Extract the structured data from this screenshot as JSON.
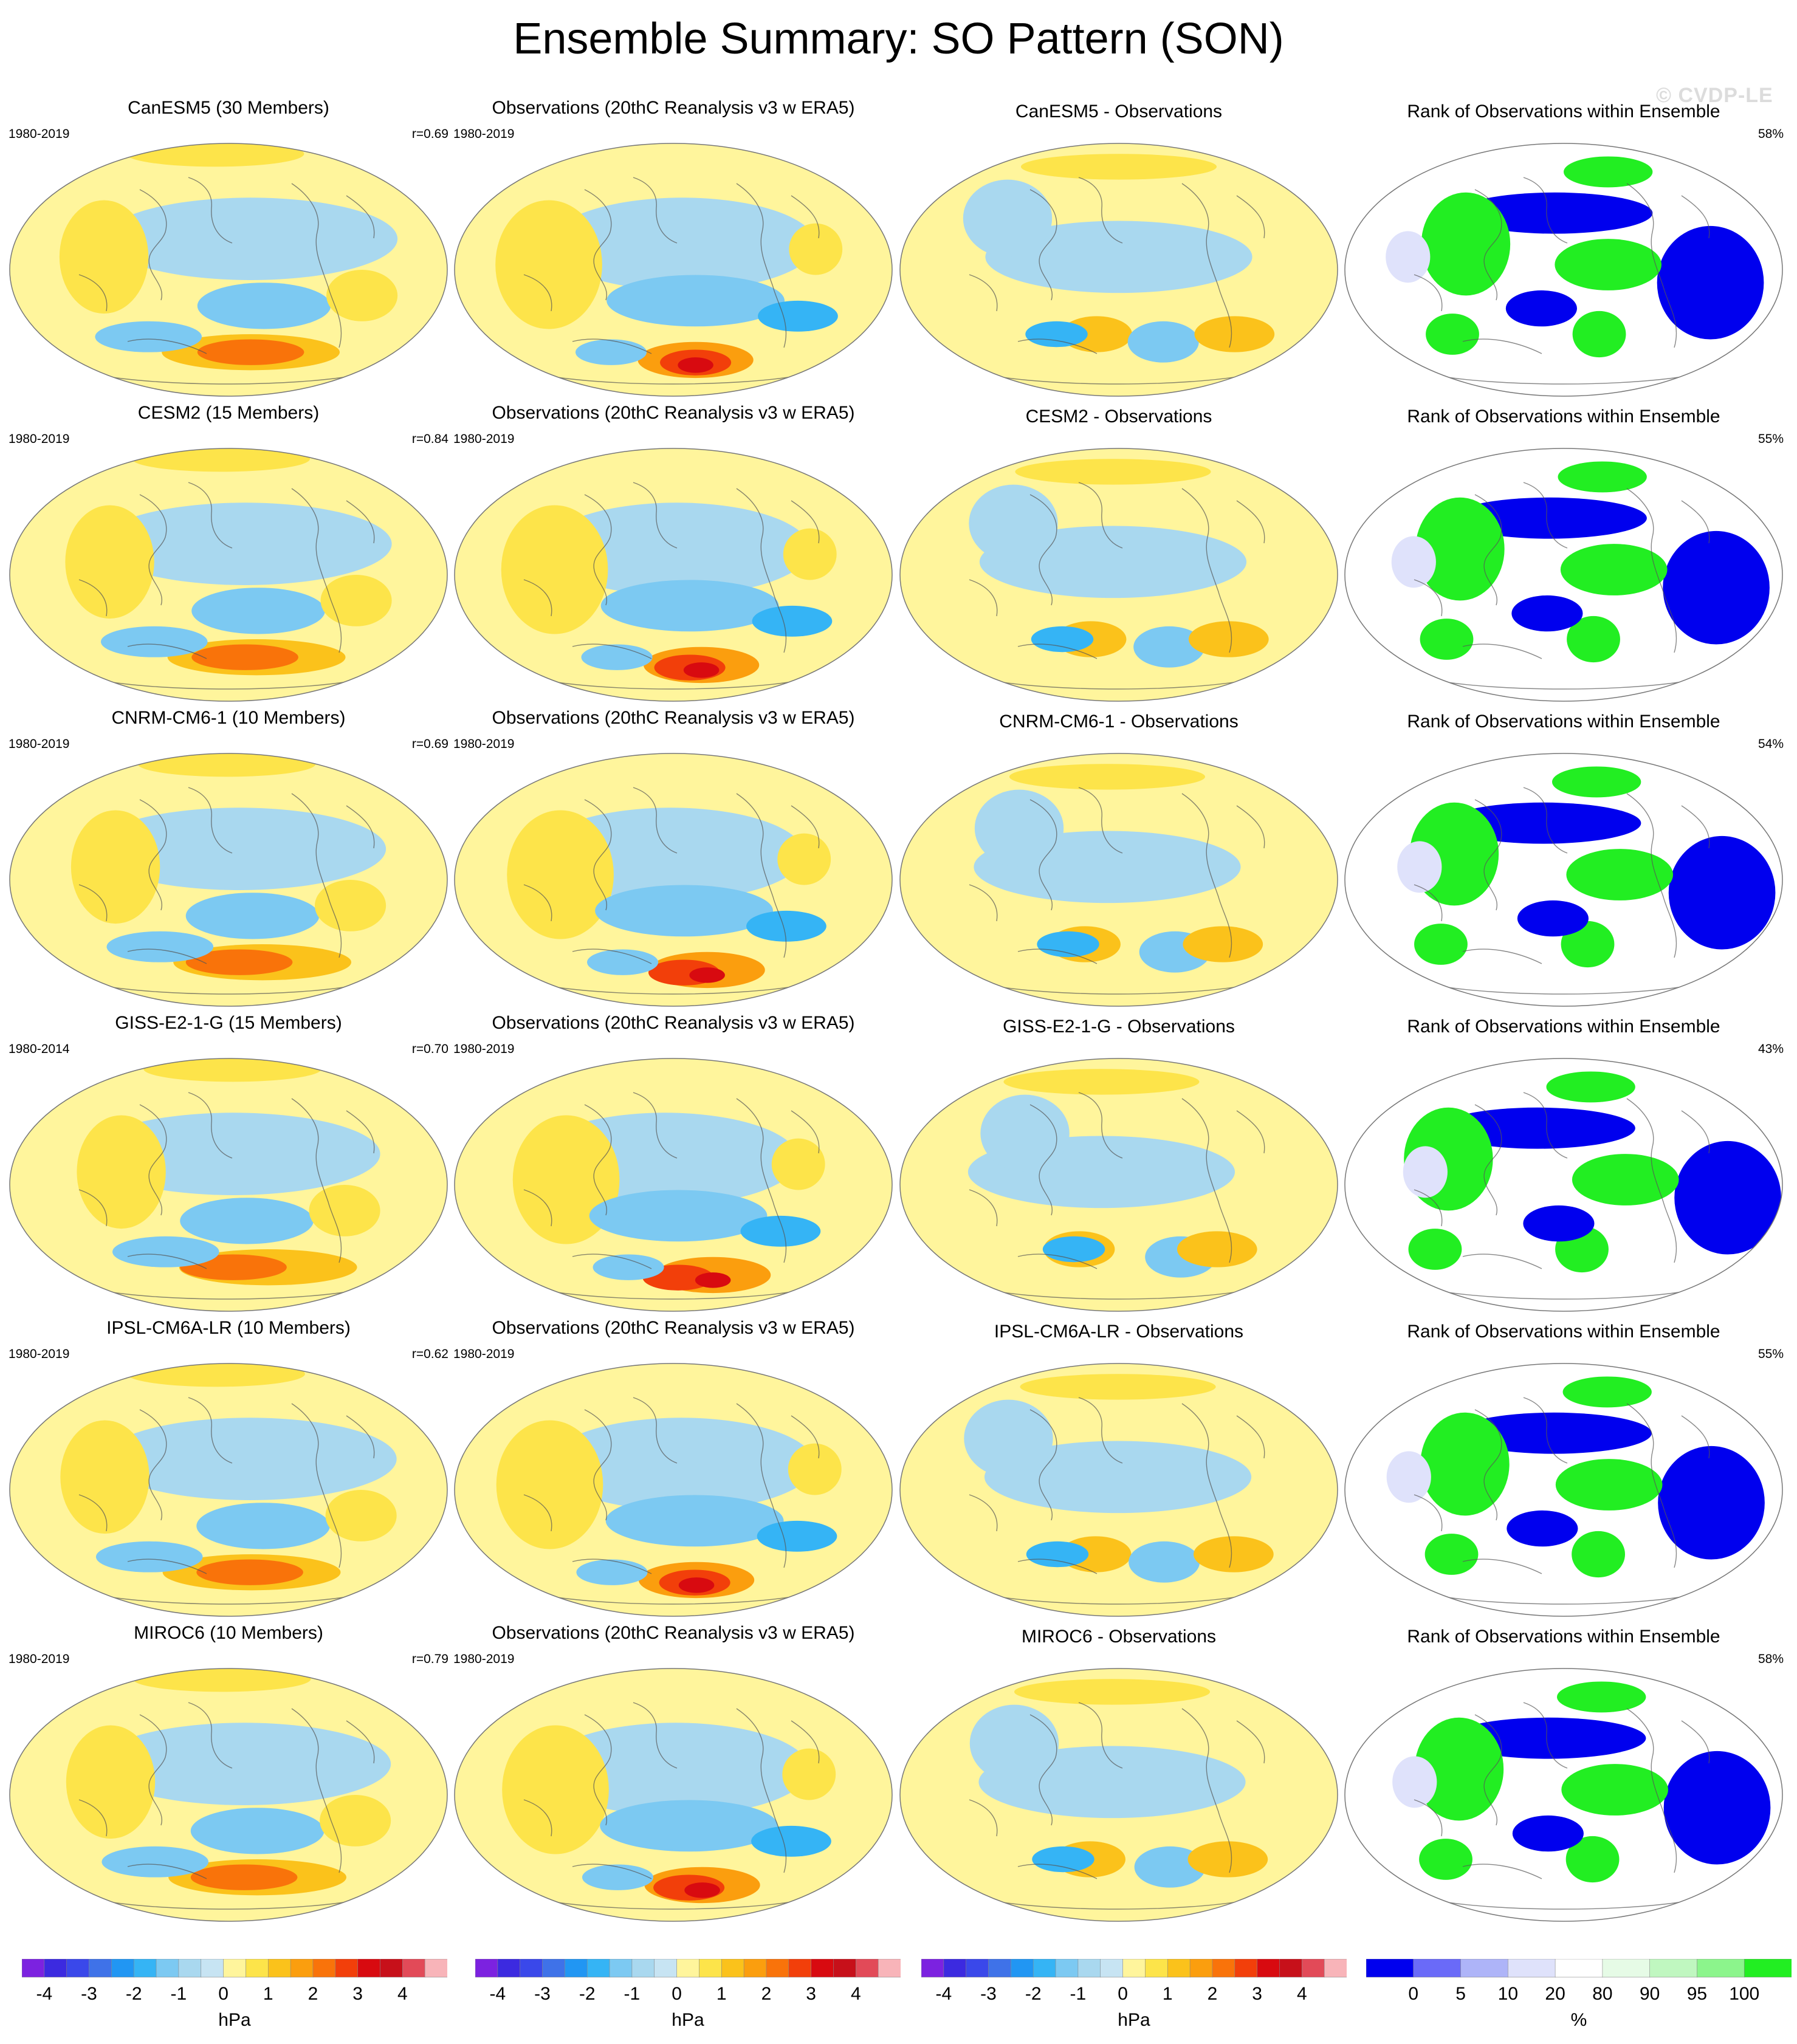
{
  "title": "Ensemble Summary: SO Pattern (SON)",
  "watermark": "© CVDP-LE",
  "colors": {
    "hpa_scale": [
      "#7c22e0",
      "#3c2ae0",
      "#3a48ea",
      "#3f72e8",
      "#2196f3",
      "#35b4f5",
      "#7cc9f2",
      "#a9d8ef",
      "#c7e4f3",
      "#fff59c",
      "#fde44a",
      "#fbc21b",
      "#fb9e0e",
      "#f9730a",
      "#f23f0a",
      "#d80a10",
      "#c7101a",
      "#e24a58",
      "#f8b4b9"
    ],
    "rank_scale": [
      "#0000ee",
      "#6a6af8",
      "#aeb4f8",
      "#dfe2fb",
      "#ffffff",
      "#e6fbe6",
      "#c0f7c0",
      "#8cf58c",
      "#22ee22"
    ]
  },
  "colorbars": [
    {
      "ticks": [
        "-4",
        "-3",
        "-2",
        "-1",
        "0",
        "1",
        "2",
        "3",
        "4"
      ],
      "unit": "hPa",
      "type": "hpa"
    },
    {
      "ticks": [
        "-4",
        "-3",
        "-2",
        "-1",
        "0",
        "1",
        "2",
        "3",
        "4"
      ],
      "unit": "hPa",
      "type": "hpa"
    },
    {
      "ticks": [
        "-4",
        "-3",
        "-2",
        "-1",
        "0",
        "1",
        "2",
        "3",
        "4"
      ],
      "unit": "hPa",
      "type": "hpa"
    },
    {
      "ticks": [
        "0",
        "5",
        "10",
        "20",
        "80",
        "90",
        "95",
        "100"
      ],
      "unit": "%",
      "type": "rank"
    }
  ],
  "rows": [
    {
      "model": {
        "title": "CanESM5 (30 Members)",
        "period": "1980-2019",
        "r": "r=0.69"
      },
      "obs": {
        "title": "Observations (20thC Reanalysis v3 w ERA5)",
        "period": "1980-2019"
      },
      "diff": {
        "title": "CanESM5 - Observations"
      },
      "rank": {
        "title": "Rank of Observations within Ensemble",
        "pct": "58%"
      }
    },
    {
      "model": {
        "title": "CESM2 (15 Members)",
        "period": "1980-2019",
        "r": "r=0.84"
      },
      "obs": {
        "title": "Observations (20thC Reanalysis v3 w ERA5)",
        "period": "1980-2019"
      },
      "diff": {
        "title": "CESM2 - Observations"
      },
      "rank": {
        "title": "Rank of Observations within Ensemble",
        "pct": "55%"
      }
    },
    {
      "model": {
        "title": "CNRM-CM6-1 (10 Members)",
        "period": "1980-2019",
        "r": "r=0.69"
      },
      "obs": {
        "title": "Observations (20thC Reanalysis v3 w ERA5)",
        "period": "1980-2019"
      },
      "diff": {
        "title": "CNRM-CM6-1 - Observations"
      },
      "rank": {
        "title": "Rank of Observations within Ensemble",
        "pct": "54%"
      }
    },
    {
      "model": {
        "title": "GISS-E2-1-G (15 Members)",
        "period": "1980-2014",
        "r": "r=0.70"
      },
      "obs": {
        "title": "Observations (20thC Reanalysis v3 w ERA5)",
        "period": "1980-2019"
      },
      "diff": {
        "title": "GISS-E2-1-G - Observations"
      },
      "rank": {
        "title": "Rank of Observations within Ensemble",
        "pct": "43%"
      }
    },
    {
      "model": {
        "title": "IPSL-CM6A-LR (10 Members)",
        "period": "1980-2019",
        "r": "r=0.62"
      },
      "obs": {
        "title": "Observations (20thC Reanalysis v3 w ERA5)",
        "period": "1980-2019"
      },
      "diff": {
        "title": "IPSL-CM6A-LR - Observations"
      },
      "rank": {
        "title": "Rank of Observations within Ensemble",
        "pct": "55%"
      }
    },
    {
      "model": {
        "title": "MIROC6 (10 Members)",
        "period": "1980-2019",
        "r": "r=0.79"
      },
      "obs": {
        "title": "Observations (20thC Reanalysis v3 w ERA5)",
        "period": "1980-2019"
      },
      "diff": {
        "title": "MIROC6 - Observations"
      },
      "rank": {
        "title": "Rank of Observations within Ensemble",
        "pct": "58%"
      }
    }
  ],
  "chart_data": {
    "type": "heatmap",
    "projection": "Robinson global map",
    "columns": [
      "model",
      "observations",
      "model minus observations",
      "rank of observations within ensemble"
    ],
    "units": [
      "hPa",
      "hPa",
      "hPa",
      "%"
    ],
    "hpa_levels": [
      -4.5,
      -4,
      -3.5,
      -3,
      -2.5,
      -2,
      -1.5,
      -1,
      -0.5,
      0,
      0.5,
      1,
      1.5,
      2,
      2.5,
      3,
      3.5,
      4,
      4.5
    ],
    "rank_levels": [
      0,
      5,
      10,
      20,
      80,
      90,
      95,
      100
    ],
    "pattern_correlation": [
      0.69,
      0.84,
      0.69,
      0.7,
      0.62,
      0.79
    ],
    "rank_percent": [
      58,
      55,
      54,
      43,
      55,
      58
    ]
  }
}
